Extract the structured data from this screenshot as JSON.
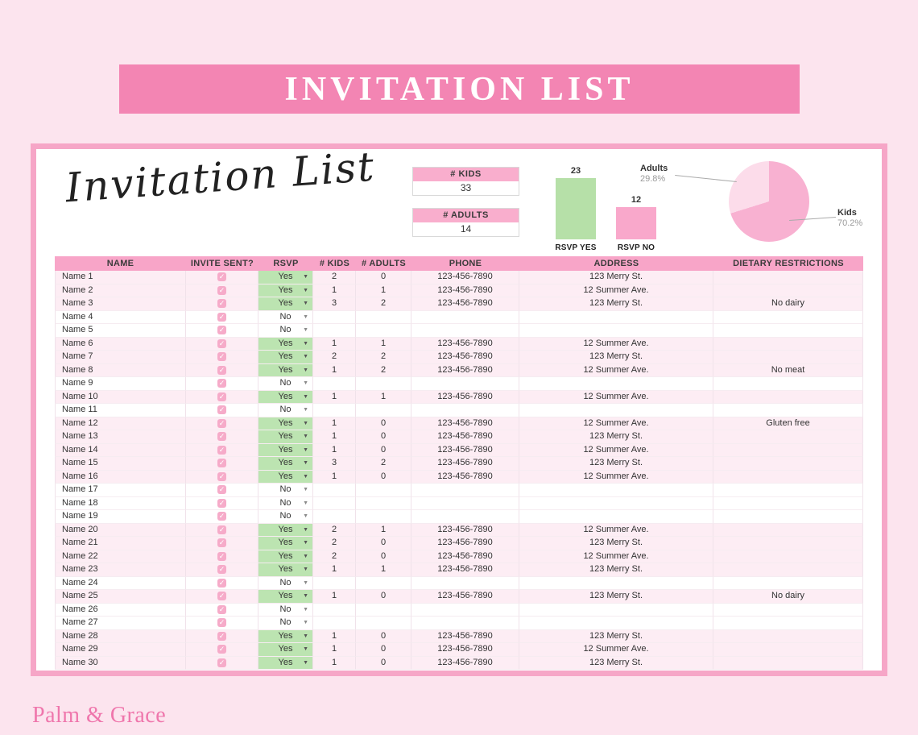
{
  "banner": {
    "title": "INVITATION LIST"
  },
  "card": {
    "script_title": "Invitation List",
    "summary": {
      "kids_label": "# KIDS",
      "kids_value": "33",
      "adults_label": "# ADULTS",
      "adults_value": "14"
    }
  },
  "chart_data": [
    {
      "type": "bar",
      "categories": [
        "RSVP YES",
        "RSVP NO"
      ],
      "values": [
        23,
        12
      ],
      "colors": [
        "#b6e0a8",
        "#f9a8cb"
      ],
      "ylim": [
        0,
        25
      ],
      "grid": false,
      "data_labels": [
        "23",
        "12"
      ]
    },
    {
      "type": "pie",
      "labels": [
        "Kids",
        "Adults"
      ],
      "values": [
        70.2,
        29.8
      ],
      "value_labels": [
        "70.2%",
        "29.8%"
      ],
      "colors": [
        "#f8b1d1",
        "#fcdcea"
      ],
      "legend_position": "callout-labels"
    }
  ],
  "table": {
    "headers": [
      "NAME",
      "INVITE SENT?",
      "RSVP",
      "# KIDS",
      "# ADULTS",
      "PHONE",
      "ADDRESS",
      "DIETARY RESTRICTIONS"
    ],
    "rows": [
      {
        "name": "Name 1",
        "invite_sent": true,
        "rsvp": "Yes",
        "kids": "2",
        "adults": "0",
        "phone": "123-456-7890",
        "address": "123 Merry St.",
        "dietary": ""
      },
      {
        "name": "Name 2",
        "invite_sent": true,
        "rsvp": "Yes",
        "kids": "1",
        "adults": "1",
        "phone": "123-456-7890",
        "address": "12 Summer Ave.",
        "dietary": ""
      },
      {
        "name": "Name 3",
        "invite_sent": true,
        "rsvp": "Yes",
        "kids": "3",
        "adults": "2",
        "phone": "123-456-7890",
        "address": "123 Merry St.",
        "dietary": "No dairy"
      },
      {
        "name": "Name 4",
        "invite_sent": true,
        "rsvp": "No",
        "kids": "",
        "adults": "",
        "phone": "",
        "address": "",
        "dietary": ""
      },
      {
        "name": "Name 5",
        "invite_sent": true,
        "rsvp": "No",
        "kids": "",
        "adults": "",
        "phone": "",
        "address": "",
        "dietary": ""
      },
      {
        "name": "Name 6",
        "invite_sent": true,
        "rsvp": "Yes",
        "kids": "1",
        "adults": "1",
        "phone": "123-456-7890",
        "address": "12 Summer Ave.",
        "dietary": ""
      },
      {
        "name": "Name 7",
        "invite_sent": true,
        "rsvp": "Yes",
        "kids": "2",
        "adults": "2",
        "phone": "123-456-7890",
        "address": "123 Merry St.",
        "dietary": ""
      },
      {
        "name": "Name 8",
        "invite_sent": true,
        "rsvp": "Yes",
        "kids": "1",
        "adults": "2",
        "phone": "123-456-7890",
        "address": "12 Summer Ave.",
        "dietary": "No meat"
      },
      {
        "name": "Name 9",
        "invite_sent": true,
        "rsvp": "No",
        "kids": "",
        "adults": "",
        "phone": "",
        "address": "",
        "dietary": ""
      },
      {
        "name": "Name 10",
        "invite_sent": true,
        "rsvp": "Yes",
        "kids": "1",
        "adults": "1",
        "phone": "123-456-7890",
        "address": "12 Summer Ave.",
        "dietary": ""
      },
      {
        "name": "Name 11",
        "invite_sent": true,
        "rsvp": "No",
        "kids": "",
        "adults": "",
        "phone": "",
        "address": "",
        "dietary": ""
      },
      {
        "name": "Name 12",
        "invite_sent": true,
        "rsvp": "Yes",
        "kids": "1",
        "adults": "0",
        "phone": "123-456-7890",
        "address": "12 Summer Ave.",
        "dietary": "Gluten free"
      },
      {
        "name": "Name 13",
        "invite_sent": true,
        "rsvp": "Yes",
        "kids": "1",
        "adults": "0",
        "phone": "123-456-7890",
        "address": "123 Merry St.",
        "dietary": ""
      },
      {
        "name": "Name 14",
        "invite_sent": true,
        "rsvp": "Yes",
        "kids": "1",
        "adults": "0",
        "phone": "123-456-7890",
        "address": "12 Summer Ave.",
        "dietary": ""
      },
      {
        "name": "Name 15",
        "invite_sent": true,
        "rsvp": "Yes",
        "kids": "3",
        "adults": "2",
        "phone": "123-456-7890",
        "address": "123 Merry St.",
        "dietary": ""
      },
      {
        "name": "Name 16",
        "invite_sent": true,
        "rsvp": "Yes",
        "kids": "1",
        "adults": "0",
        "phone": "123-456-7890",
        "address": "12 Summer Ave.",
        "dietary": ""
      },
      {
        "name": "Name 17",
        "invite_sent": true,
        "rsvp": "No",
        "kids": "",
        "adults": "",
        "phone": "",
        "address": "",
        "dietary": ""
      },
      {
        "name": "Name 18",
        "invite_sent": true,
        "rsvp": "No",
        "kids": "",
        "adults": "",
        "phone": "",
        "address": "",
        "dietary": ""
      },
      {
        "name": "Name 19",
        "invite_sent": true,
        "rsvp": "No",
        "kids": "",
        "adults": "",
        "phone": "",
        "address": "",
        "dietary": ""
      },
      {
        "name": "Name 20",
        "invite_sent": true,
        "rsvp": "Yes",
        "kids": "2",
        "adults": "1",
        "phone": "123-456-7890",
        "address": "12 Summer Ave.",
        "dietary": ""
      },
      {
        "name": "Name 21",
        "invite_sent": true,
        "rsvp": "Yes",
        "kids": "2",
        "adults": "0",
        "phone": "123-456-7890",
        "address": "123 Merry St.",
        "dietary": ""
      },
      {
        "name": "Name 22",
        "invite_sent": true,
        "rsvp": "Yes",
        "kids": "2",
        "adults": "0",
        "phone": "123-456-7890",
        "address": "12 Summer Ave.",
        "dietary": ""
      },
      {
        "name": "Name 23",
        "invite_sent": true,
        "rsvp": "Yes",
        "kids": "1",
        "adults": "1",
        "phone": "123-456-7890",
        "address": "123 Merry St.",
        "dietary": ""
      },
      {
        "name": "Name 24",
        "invite_sent": true,
        "rsvp": "No",
        "kids": "",
        "adults": "",
        "phone": "",
        "address": "",
        "dietary": ""
      },
      {
        "name": "Name 25",
        "invite_sent": true,
        "rsvp": "Yes",
        "kids": "1",
        "adults": "0",
        "phone": "123-456-7890",
        "address": "123 Merry St.",
        "dietary": "No dairy"
      },
      {
        "name": "Name 26",
        "invite_sent": true,
        "rsvp": "No",
        "kids": "",
        "adults": "",
        "phone": "",
        "address": "",
        "dietary": ""
      },
      {
        "name": "Name 27",
        "invite_sent": true,
        "rsvp": "No",
        "kids": "",
        "adults": "",
        "phone": "",
        "address": "",
        "dietary": ""
      },
      {
        "name": "Name 28",
        "invite_sent": true,
        "rsvp": "Yes",
        "kids": "1",
        "adults": "0",
        "phone": "123-456-7890",
        "address": "123 Merry St.",
        "dietary": ""
      },
      {
        "name": "Name 29",
        "invite_sent": true,
        "rsvp": "Yes",
        "kids": "1",
        "adults": "0",
        "phone": "123-456-7890",
        "address": "12 Summer Ave.",
        "dietary": ""
      },
      {
        "name": "Name 30",
        "invite_sent": true,
        "rsvp": "Yes",
        "kids": "1",
        "adults": "0",
        "phone": "123-456-7890",
        "address": "123 Merry St.",
        "dietary": ""
      }
    ]
  },
  "footer": {
    "logo": "Palm & Grace"
  },
  "colors": {
    "page_bg": "#fce4ee",
    "banner_pink": "#f385b3",
    "card_border_pink": "#f6a6c7",
    "table_header_pink": "#f8a5c8",
    "row_tint_pink": "#fdedf4",
    "summary_header_pink": "#f9aecd",
    "rsvp_yes_green": "#bce4b1",
    "checkbox_pink": "#f6abc9",
    "bar_green": "#b6e0a8",
    "bar_pink": "#f9a8cb",
    "pie_kids_pink": "#f8b1d1",
    "pie_adults_pink": "#fcdcea",
    "logo_pink": "#ef76ac",
    "check_icon": "✓",
    "dropdown_icon": "▼"
  }
}
